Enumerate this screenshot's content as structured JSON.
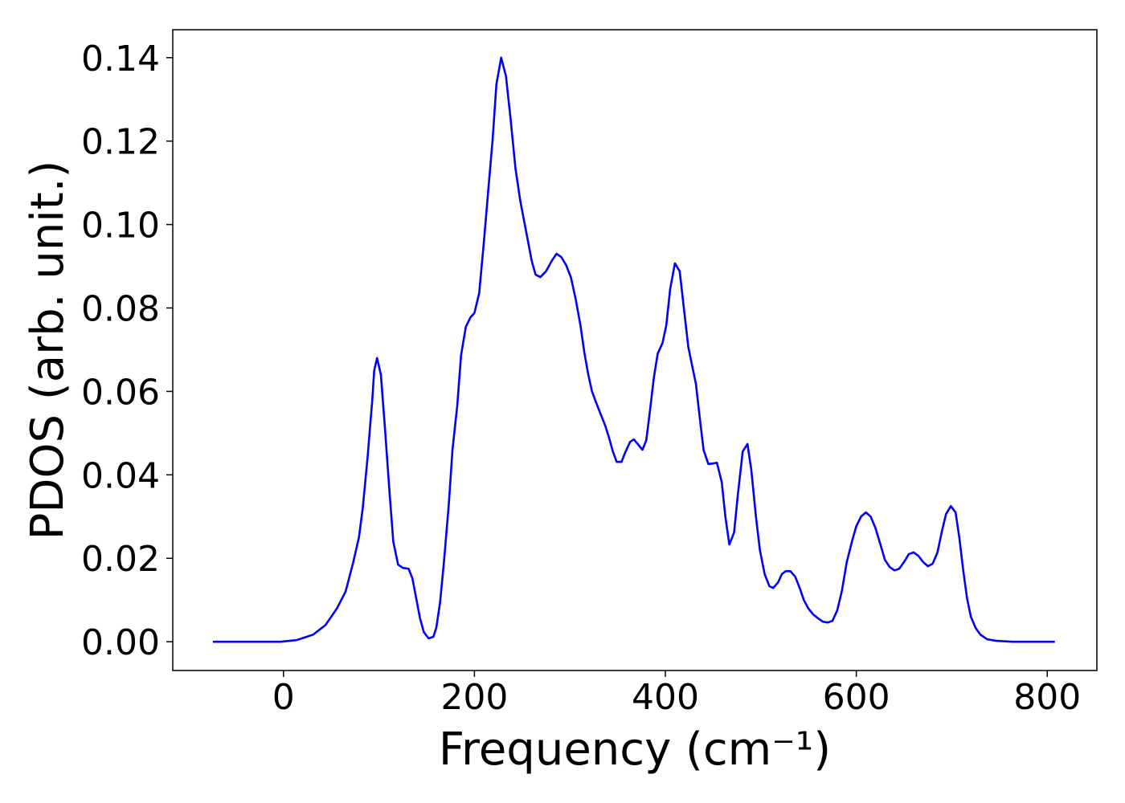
{
  "chart_data": {
    "type": "line",
    "xlabel": "Frequency (cm⁻¹)",
    "ylabel": "PDOS (arb. unit.)",
    "xlim": [
      -116,
      852
    ],
    "ylim": [
      -0.0069,
      0.1467
    ],
    "xticks": [
      0,
      200,
      400,
      600,
      800
    ],
    "yticks": [
      {
        "value": 0,
        "label": "0.00"
      },
      {
        "value": 0.02,
        "label": "0.02"
      },
      {
        "value": 0.04,
        "label": "0.04"
      },
      {
        "value": 0.06,
        "label": "0.06"
      },
      {
        "value": 0.08,
        "label": "0.08"
      },
      {
        "value": 0.1,
        "label": "0.10"
      },
      {
        "value": 0.12,
        "label": "0.12"
      },
      {
        "value": 0.14,
        "label": "0.14"
      }
    ],
    "grid": false,
    "series": [
      {
        "color": "#0000ff",
        "x": [
          -74,
          -3,
          14,
          31,
          44,
          56,
          65,
          73,
          79,
          83,
          88,
          93,
          95,
          98,
          102,
          106,
          111,
          115,
          120,
          125,
          131,
          135,
          139,
          143,
          147,
          152,
          157,
          160,
          164,
          168,
          173,
          177,
          182,
          186,
          191,
          196,
          200,
          205,
          210,
          215,
          219,
          223,
          228,
          233,
          238,
          243,
          248,
          252,
          256,
          260,
          264,
          269,
          275,
          281,
          286,
          291,
          296,
          301,
          306,
          311,
          315,
          319,
          323,
          328,
          333,
          337,
          341,
          345,
          349,
          354,
          358,
          363,
          367,
          371,
          376,
          380,
          384,
          388,
          392,
          397,
          401,
          405,
          410,
          415,
          419,
          424,
          428,
          432,
          436,
          440,
          445,
          449,
          454,
          459,
          463,
          467,
          472,
          476,
          481,
          486,
          490,
          495,
          499,
          504,
          509,
          513,
          518,
          522,
          526,
          531,
          536,
          541,
          545,
          550,
          555,
          560,
          565,
          570,
          575,
          580,
          585,
          590,
          596,
          600,
          605,
          610,
          615,
          620,
          625,
          630,
          635,
          640,
          645,
          650,
          655,
          660,
          665,
          670,
          675,
          680,
          685,
          690,
          694,
          699,
          704,
          708,
          712,
          716,
          720,
          725,
          730,
          737,
          747,
          764,
          808
        ],
        "values": [
          0,
          0,
          0.0004,
          0.0017,
          0.004,
          0.008,
          0.012,
          0.019,
          0.025,
          0.032,
          0.044,
          0.058,
          0.065,
          0.068,
          0.064,
          0.052,
          0.036,
          0.024,
          0.0185,
          0.0177,
          0.0175,
          0.0152,
          0.0104,
          0.0056,
          0.0023,
          0.0008,
          0.0012,
          0.0033,
          0.0094,
          0.019,
          0.0325,
          0.046,
          0.0566,
          0.0687,
          0.0755,
          0.0778,
          0.0788,
          0.0836,
          0.0961,
          0.1096,
          0.1202,
          0.1336,
          0.14,
          0.1356,
          0.125,
          0.1134,
          0.1057,
          0.1009,
          0.0961,
          0.0913,
          0.088,
          0.0874,
          0.0888,
          0.0913,
          0.093,
          0.0922,
          0.0903,
          0.0874,
          0.0822,
          0.0759,
          0.0695,
          0.0643,
          0.0601,
          0.057,
          0.0541,
          0.0518,
          0.0489,
          0.0456,
          0.0431,
          0.0431,
          0.0454,
          0.0479,
          0.0485,
          0.0474,
          0.046,
          0.0483,
          0.0556,
          0.0634,
          0.0691,
          0.0716,
          0.0759,
          0.0845,
          0.0907,
          0.0888,
          0.0807,
          0.0707,
          0.0662,
          0.0618,
          0.0537,
          0.046,
          0.0426,
          0.0427,
          0.0429,
          0.0383,
          0.0297,
          0.0233,
          0.0262,
          0.0354,
          0.0456,
          0.0474,
          0.0412,
          0.0297,
          0.022,
          0.0162,
          0.0133,
          0.0129,
          0.0142,
          0.0162,
          0.0169,
          0.0169,
          0.0156,
          0.0127,
          0.01,
          0.0079,
          0.0065,
          0.0056,
          0.0048,
          0.0046,
          0.005,
          0.0075,
          0.0123,
          0.0191,
          0.0245,
          0.0277,
          0.03,
          0.031,
          0.03,
          0.0273,
          0.0235,
          0.0196,
          0.0179,
          0.0171,
          0.0175,
          0.0191,
          0.021,
          0.0214,
          0.0206,
          0.0191,
          0.0181,
          0.0187,
          0.0214,
          0.0268,
          0.0306,
          0.0325,
          0.031,
          0.0248,
          0.0171,
          0.0104,
          0.006,
          0.0033,
          0.0017,
          0.0006,
          0.0002,
          0,
          0
        ]
      }
    ]
  }
}
